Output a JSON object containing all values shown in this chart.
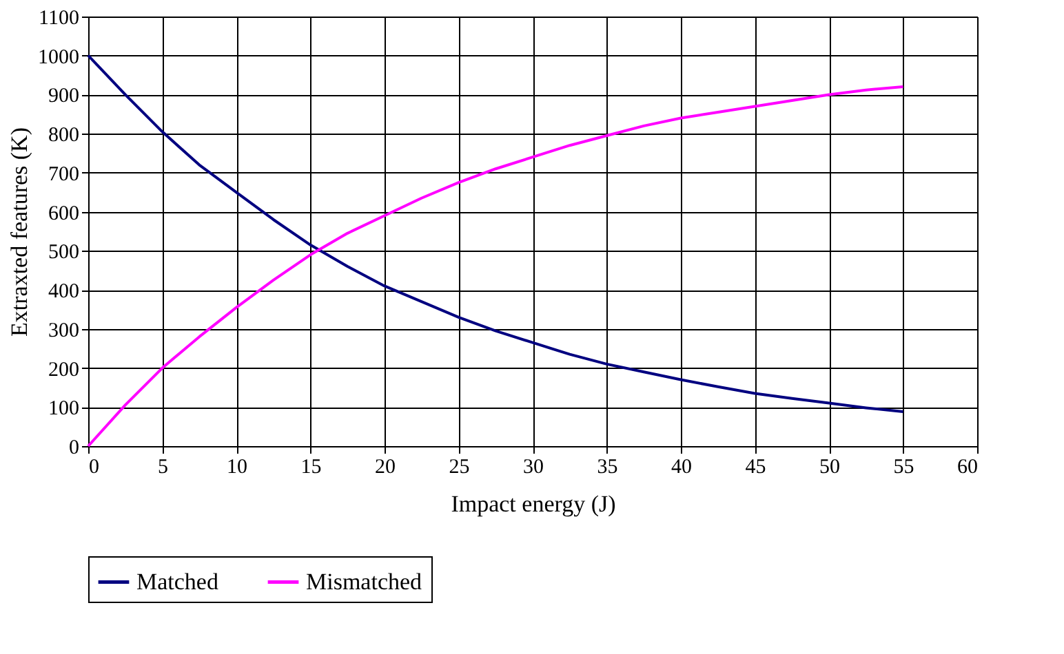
{
  "chart_data": {
    "type": "line",
    "xlabel": "Impact energy (J)",
    "ylabel": "Extraxted features (K)",
    "x": [
      0,
      2.5,
      5,
      7.5,
      10,
      12.5,
      15,
      17.5,
      20,
      22.5,
      25,
      27.5,
      30,
      32.5,
      35,
      37.5,
      40,
      42.5,
      45,
      47.5,
      50,
      52.5,
      55
    ],
    "series": [
      {
        "name": "Matched",
        "color": "#000080",
        "values": [
          1000,
          900,
          805,
          720,
          650,
          580,
          515,
          460,
          410,
          370,
          330,
          295,
          265,
          235,
          210,
          190,
          170,
          152,
          135,
          122,
          110,
          98,
          88
        ]
      },
      {
        "name": "Mismatched",
        "color": "#ff00ff",
        "values": [
          0,
          105,
          200,
          280,
          355,
          425,
          490,
          545,
          590,
          635,
          675,
          710,
          740,
          770,
          795,
          820,
          840,
          855,
          870,
          885,
          900,
          912,
          920
        ]
      }
    ],
    "xlim": [
      0,
      60
    ],
    "xticks": [
      0,
      5,
      10,
      15,
      20,
      25,
      30,
      35,
      40,
      45,
      50,
      55,
      60
    ],
    "ylim": [
      0,
      1100
    ],
    "yticks": [
      0,
      100,
      200,
      300,
      400,
      500,
      600,
      700,
      800,
      900,
      1000,
      1100
    ],
    "grid": true,
    "legend": "bottom",
    "line_style": "solid",
    "marker": "none"
  }
}
